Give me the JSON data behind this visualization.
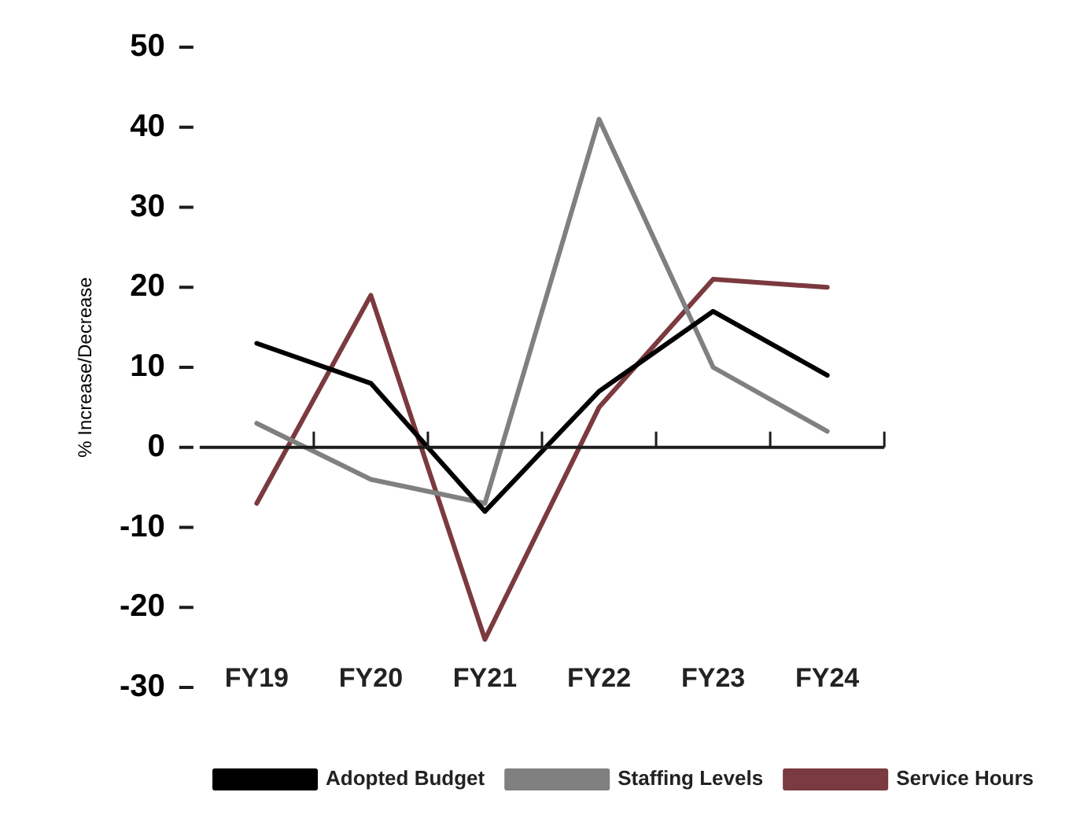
{
  "chart_data": {
    "type": "line",
    "ylabel": "% Increase/Decrease",
    "categories": [
      "FY19",
      "FY20",
      "FY21",
      "FY22",
      "FY23",
      "FY24"
    ],
    "series": [
      {
        "name": "Adopted Budget",
        "color": "#000000",
        "values": [
          13,
          8,
          -8,
          7,
          17,
          9
        ]
      },
      {
        "name": "Staffing Levels",
        "color": "#808080",
        "values": [
          3,
          -4,
          -7,
          41,
          10,
          2
        ]
      },
      {
        "name": "Service Hours",
        "color": "#7b3a3f",
        "values": [
          -7,
          19,
          -24,
          5,
          21,
          20
        ]
      }
    ],
    "ref_lines": [
      {
        "axis": "y",
        "value": 0,
        "color": "#1c1c1c",
        "line_style": "solid"
      }
    ],
    "ylim": [
      -30,
      50
    ],
    "yticks": [
      -30,
      -20,
      -10,
      0,
      10,
      20,
      30,
      40,
      50
    ],
    "grid": false,
    "legend": "bottom",
    "marker": "none",
    "line_style": "solid"
  }
}
